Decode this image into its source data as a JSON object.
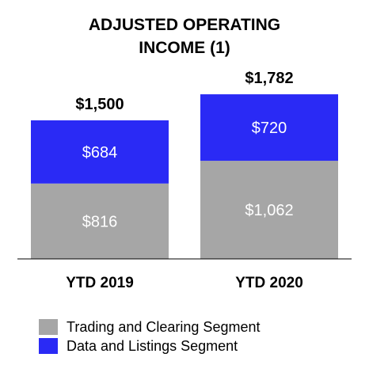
{
  "chart_data": {
    "type": "bar",
    "stacked": true,
    "title_lines": [
      "ADJUSTED OPERATING",
      "INCOME (1)"
    ],
    "categories": [
      "YTD 2019",
      "YTD 2020"
    ],
    "series": [
      {
        "name": "Trading and Clearing Segment",
        "values": [
          816,
          1062
        ],
        "labels": [
          "$816",
          "$1,062"
        ],
        "color": "#a6a6a6"
      },
      {
        "name": "Data and Listings Segment",
        "values": [
          684,
          720
        ],
        "labels": [
          "$684",
          "$720"
        ],
        "color": "#2a2af5"
      }
    ],
    "totals": [
      1500,
      1782
    ],
    "total_labels": [
      "$1,500",
      "$1,782"
    ],
    "ylim": [
      0,
      2100
    ],
    "grid": false,
    "legend_placement": "bottom-left"
  }
}
